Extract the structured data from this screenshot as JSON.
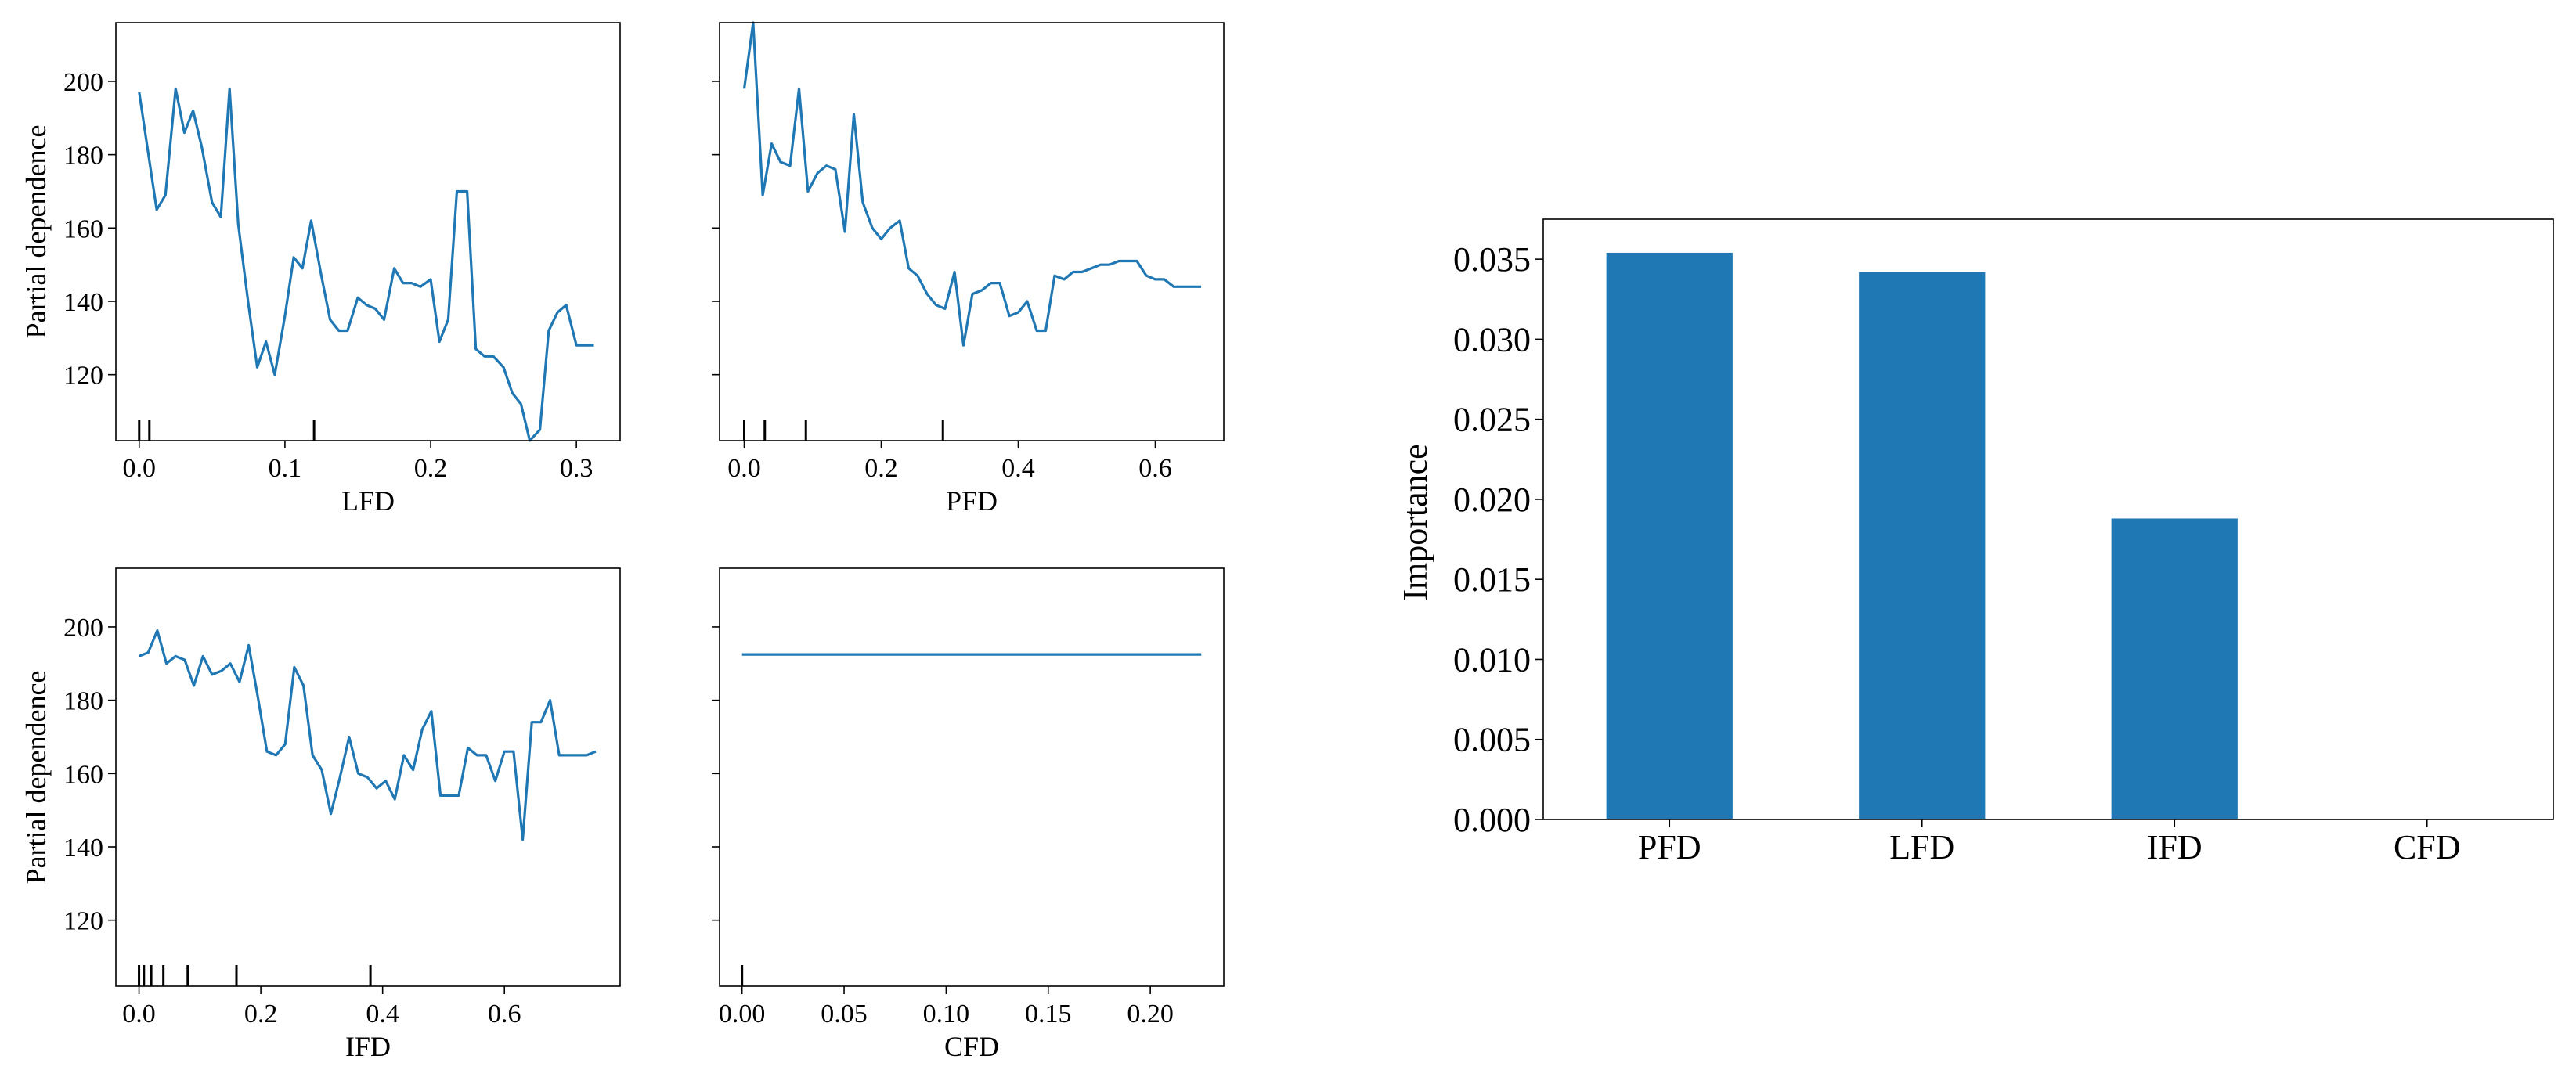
{
  "chart_data": [
    {
      "type": "line",
      "xlabel": "LFD",
      "ylabel": "Partial dependence",
      "xlim": [
        -0.016,
        0.33
      ],
      "ylim": [
        102,
        216
      ],
      "xticks": [
        0.0,
        0.1,
        0.2,
        0.3
      ],
      "xtick_labels": [
        "0.0",
        "0.1",
        "0.2",
        "0.3"
      ],
      "yticks": [
        120,
        140,
        160,
        180,
        200
      ],
      "ytick_labels": [
        "120",
        "140",
        "160",
        "180",
        "200"
      ],
      "show_ytick_labels": true,
      "rug": [
        0.0,
        0.007,
        0.12
      ],
      "series": [
        {
          "color": "#1f77b4",
          "x": [
            0.0,
            0.006,
            0.012,
            0.018,
            0.025,
            0.031,
            0.037,
            0.043,
            0.05,
            0.056,
            0.062,
            0.068,
            0.075,
            0.081,
            0.087,
            0.093,
            0.1,
            0.106,
            0.112,
            0.118,
            0.125,
            0.131,
            0.137,
            0.143,
            0.15,
            0.156,
            0.162,
            0.168,
            0.175,
            0.181,
            0.187,
            0.193,
            0.2,
            0.206,
            0.212,
            0.218,
            0.225,
            0.231,
            0.237,
            0.243,
            0.25,
            0.256,
            0.262,
            0.268,
            0.275,
            0.281,
            0.287,
            0.293,
            0.3,
            0.306,
            0.312
          ],
          "y": [
            197,
            181,
            165,
            169,
            198,
            186,
            192,
            182,
            167,
            163,
            198,
            161,
            139,
            122,
            129,
            120,
            136,
            152,
            149,
            162,
            147,
            135,
            132,
            132,
            141,
            139,
            138,
            135,
            149,
            145,
            145,
            144,
            146,
            129,
            135,
            170,
            170,
            127,
            125,
            125,
            122,
            115,
            112,
            102,
            105,
            132,
            137,
            139,
            128,
            128,
            128
          ]
        }
      ]
    },
    {
      "type": "line",
      "xlabel": "PFD",
      "ylabel": "",
      "xlim": [
        -0.036,
        0.7
      ],
      "ylim": [
        102,
        216
      ],
      "xticks": [
        0.0,
        0.2,
        0.4,
        0.6
      ],
      "xtick_labels": [
        "0.0",
        "0.2",
        "0.4",
        "0.6"
      ],
      "yticks": [
        120,
        140,
        160,
        180,
        200
      ],
      "ytick_labels": [
        "120",
        "140",
        "160",
        "180",
        "200"
      ],
      "show_ytick_labels": false,
      "rug": [
        0.0,
        0.03,
        0.09,
        0.29
      ],
      "series": [
        {
          "color": "#1f77b4",
          "x": [
            0.0,
            0.013,
            0.027,
            0.04,
            0.053,
            0.067,
            0.08,
            0.093,
            0.107,
            0.12,
            0.133,
            0.147,
            0.16,
            0.173,
            0.187,
            0.2,
            0.213,
            0.227,
            0.24,
            0.253,
            0.267,
            0.28,
            0.293,
            0.307,
            0.32,
            0.333,
            0.347,
            0.36,
            0.373,
            0.387,
            0.4,
            0.413,
            0.427,
            0.44,
            0.453,
            0.467,
            0.48,
            0.493,
            0.507,
            0.52,
            0.533,
            0.547,
            0.56,
            0.573,
            0.587,
            0.6,
            0.613,
            0.627,
            0.64,
            0.653,
            0.667
          ],
          "y": [
            198,
            216,
            169,
            183,
            178,
            177,
            198,
            170,
            175,
            177,
            176,
            159,
            191,
            167,
            160,
            157,
            160,
            162,
            149,
            147,
            142,
            139,
            138,
            148,
            128,
            142,
            143,
            145,
            145,
            136,
            137,
            140,
            132,
            132,
            147,
            146,
            148,
            148,
            149,
            150,
            150,
            151,
            151,
            151,
            147,
            146,
            146,
            144,
            144,
            144,
            144
          ]
        }
      ]
    },
    {
      "type": "line",
      "xlabel": "IFD",
      "ylabel": "Partial dependence",
      "xlim": [
        -0.038,
        0.79
      ],
      "ylim": [
        102,
        216
      ],
      "xticks": [
        0.0,
        0.2,
        0.4,
        0.6
      ],
      "xtick_labels": [
        "0.0",
        "0.2",
        "0.4",
        "0.6"
      ],
      "yticks": [
        120,
        140,
        160,
        180,
        200
      ],
      "ytick_labels": [
        "120",
        "140",
        "160",
        "180",
        "200"
      ],
      "show_ytick_labels": true,
      "rug": [
        0.0,
        0.008,
        0.02,
        0.04,
        0.08,
        0.16,
        0.38
      ],
      "series": [
        {
          "color": "#1f77b4",
          "x": [
            0.0,
            0.015,
            0.03,
            0.045,
            0.06,
            0.075,
            0.09,
            0.105,
            0.12,
            0.135,
            0.15,
            0.165,
            0.18,
            0.195,
            0.21,
            0.225,
            0.24,
            0.255,
            0.27,
            0.285,
            0.3,
            0.315,
            0.33,
            0.345,
            0.36,
            0.375,
            0.39,
            0.405,
            0.42,
            0.435,
            0.45,
            0.465,
            0.48,
            0.495,
            0.51,
            0.525,
            0.54,
            0.555,
            0.57,
            0.585,
            0.6,
            0.615,
            0.63,
            0.645,
            0.66,
            0.675,
            0.69,
            0.705,
            0.72,
            0.735,
            0.75
          ],
          "y": [
            192,
            193,
            199,
            190,
            192,
            191,
            184,
            192,
            187,
            188,
            190,
            185,
            195,
            181,
            166,
            165,
            168,
            189,
            184,
            165,
            161,
            149,
            159,
            170,
            160,
            159,
            156,
            158,
            153,
            165,
            161,
            172,
            177,
            154,
            154,
            154,
            167,
            165,
            165,
            158,
            166,
            166,
            142,
            174,
            174,
            180,
            165,
            165,
            165,
            165,
            166
          ]
        }
      ]
    },
    {
      "type": "line",
      "xlabel": "CFD",
      "ylabel": "",
      "xlim": [
        -0.011,
        0.236
      ],
      "ylim": [
        102,
        216
      ],
      "xticks": [
        0.0,
        0.05,
        0.1,
        0.15,
        0.2
      ],
      "xtick_labels": [
        "0.00",
        "0.05",
        "0.10",
        "0.15",
        "0.20"
      ],
      "yticks": [
        120,
        140,
        160,
        180,
        200
      ],
      "ytick_labels": [
        "120",
        "140",
        "160",
        "180",
        "200"
      ],
      "show_ytick_labels": false,
      "rug": [
        0.0
      ],
      "series": [
        {
          "color": "#1f77b4",
          "x": [
            0.0,
            0.225
          ],
          "y": [
            192.5,
            192.5
          ]
        }
      ]
    },
    {
      "type": "bar",
      "xlabel": "",
      "ylabel": "Importance",
      "categories": [
        "PFD",
        "LFD",
        "IFD",
        "CFD"
      ],
      "values": [
        0.0354,
        0.0342,
        0.0188,
        0.0
      ],
      "ylim": [
        0,
        0.0375
      ],
      "yticks": [
        0.0,
        0.005,
        0.01,
        0.015,
        0.02,
        0.025,
        0.03,
        0.035
      ],
      "ytick_labels": [
        "0.000",
        "0.005",
        "0.010",
        "0.015",
        "0.020",
        "0.025",
        "0.030",
        "0.035"
      ],
      "color": "#1f77b4"
    }
  ]
}
